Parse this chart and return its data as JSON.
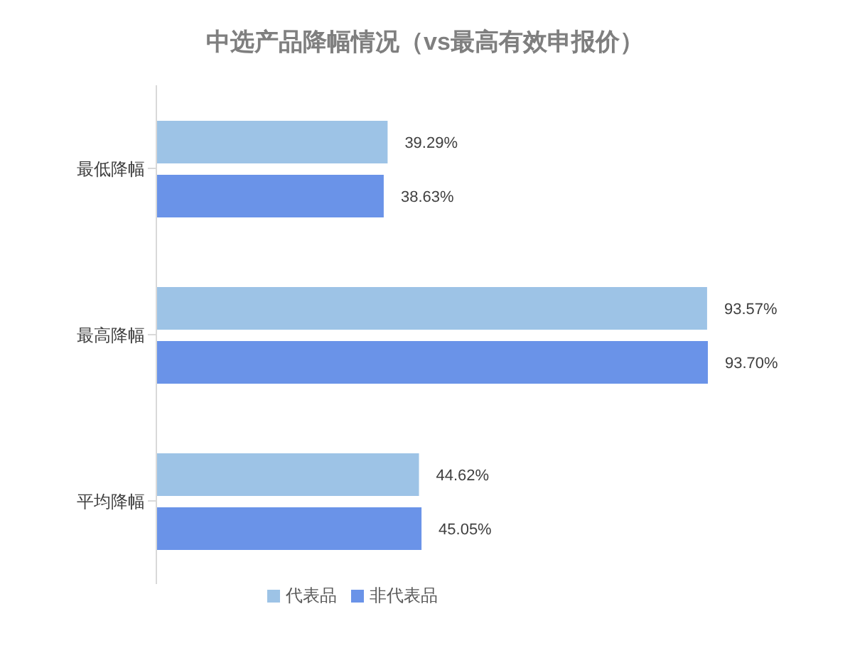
{
  "chart_data": {
    "type": "bar",
    "orientation": "horizontal",
    "title": "中选产品降幅情况（vs最高有效申报价）",
    "categories": [
      "最低降幅",
      "最高降幅",
      "平均降幅"
    ],
    "series": [
      {
        "name": "代表品",
        "color": "#9dc3e6",
        "values": [
          39.29,
          93.57,
          44.62
        ],
        "value_labels": [
          "39.29%",
          "93.57%",
          "44.62%"
        ]
      },
      {
        "name": "非代表品",
        "color": "#6a93e8",
        "values": [
          38.63,
          93.7,
          45.05
        ],
        "value_labels": [
          "38.63%",
          "93.70%",
          "45.05%"
        ]
      }
    ],
    "legend": "bottom"
  }
}
